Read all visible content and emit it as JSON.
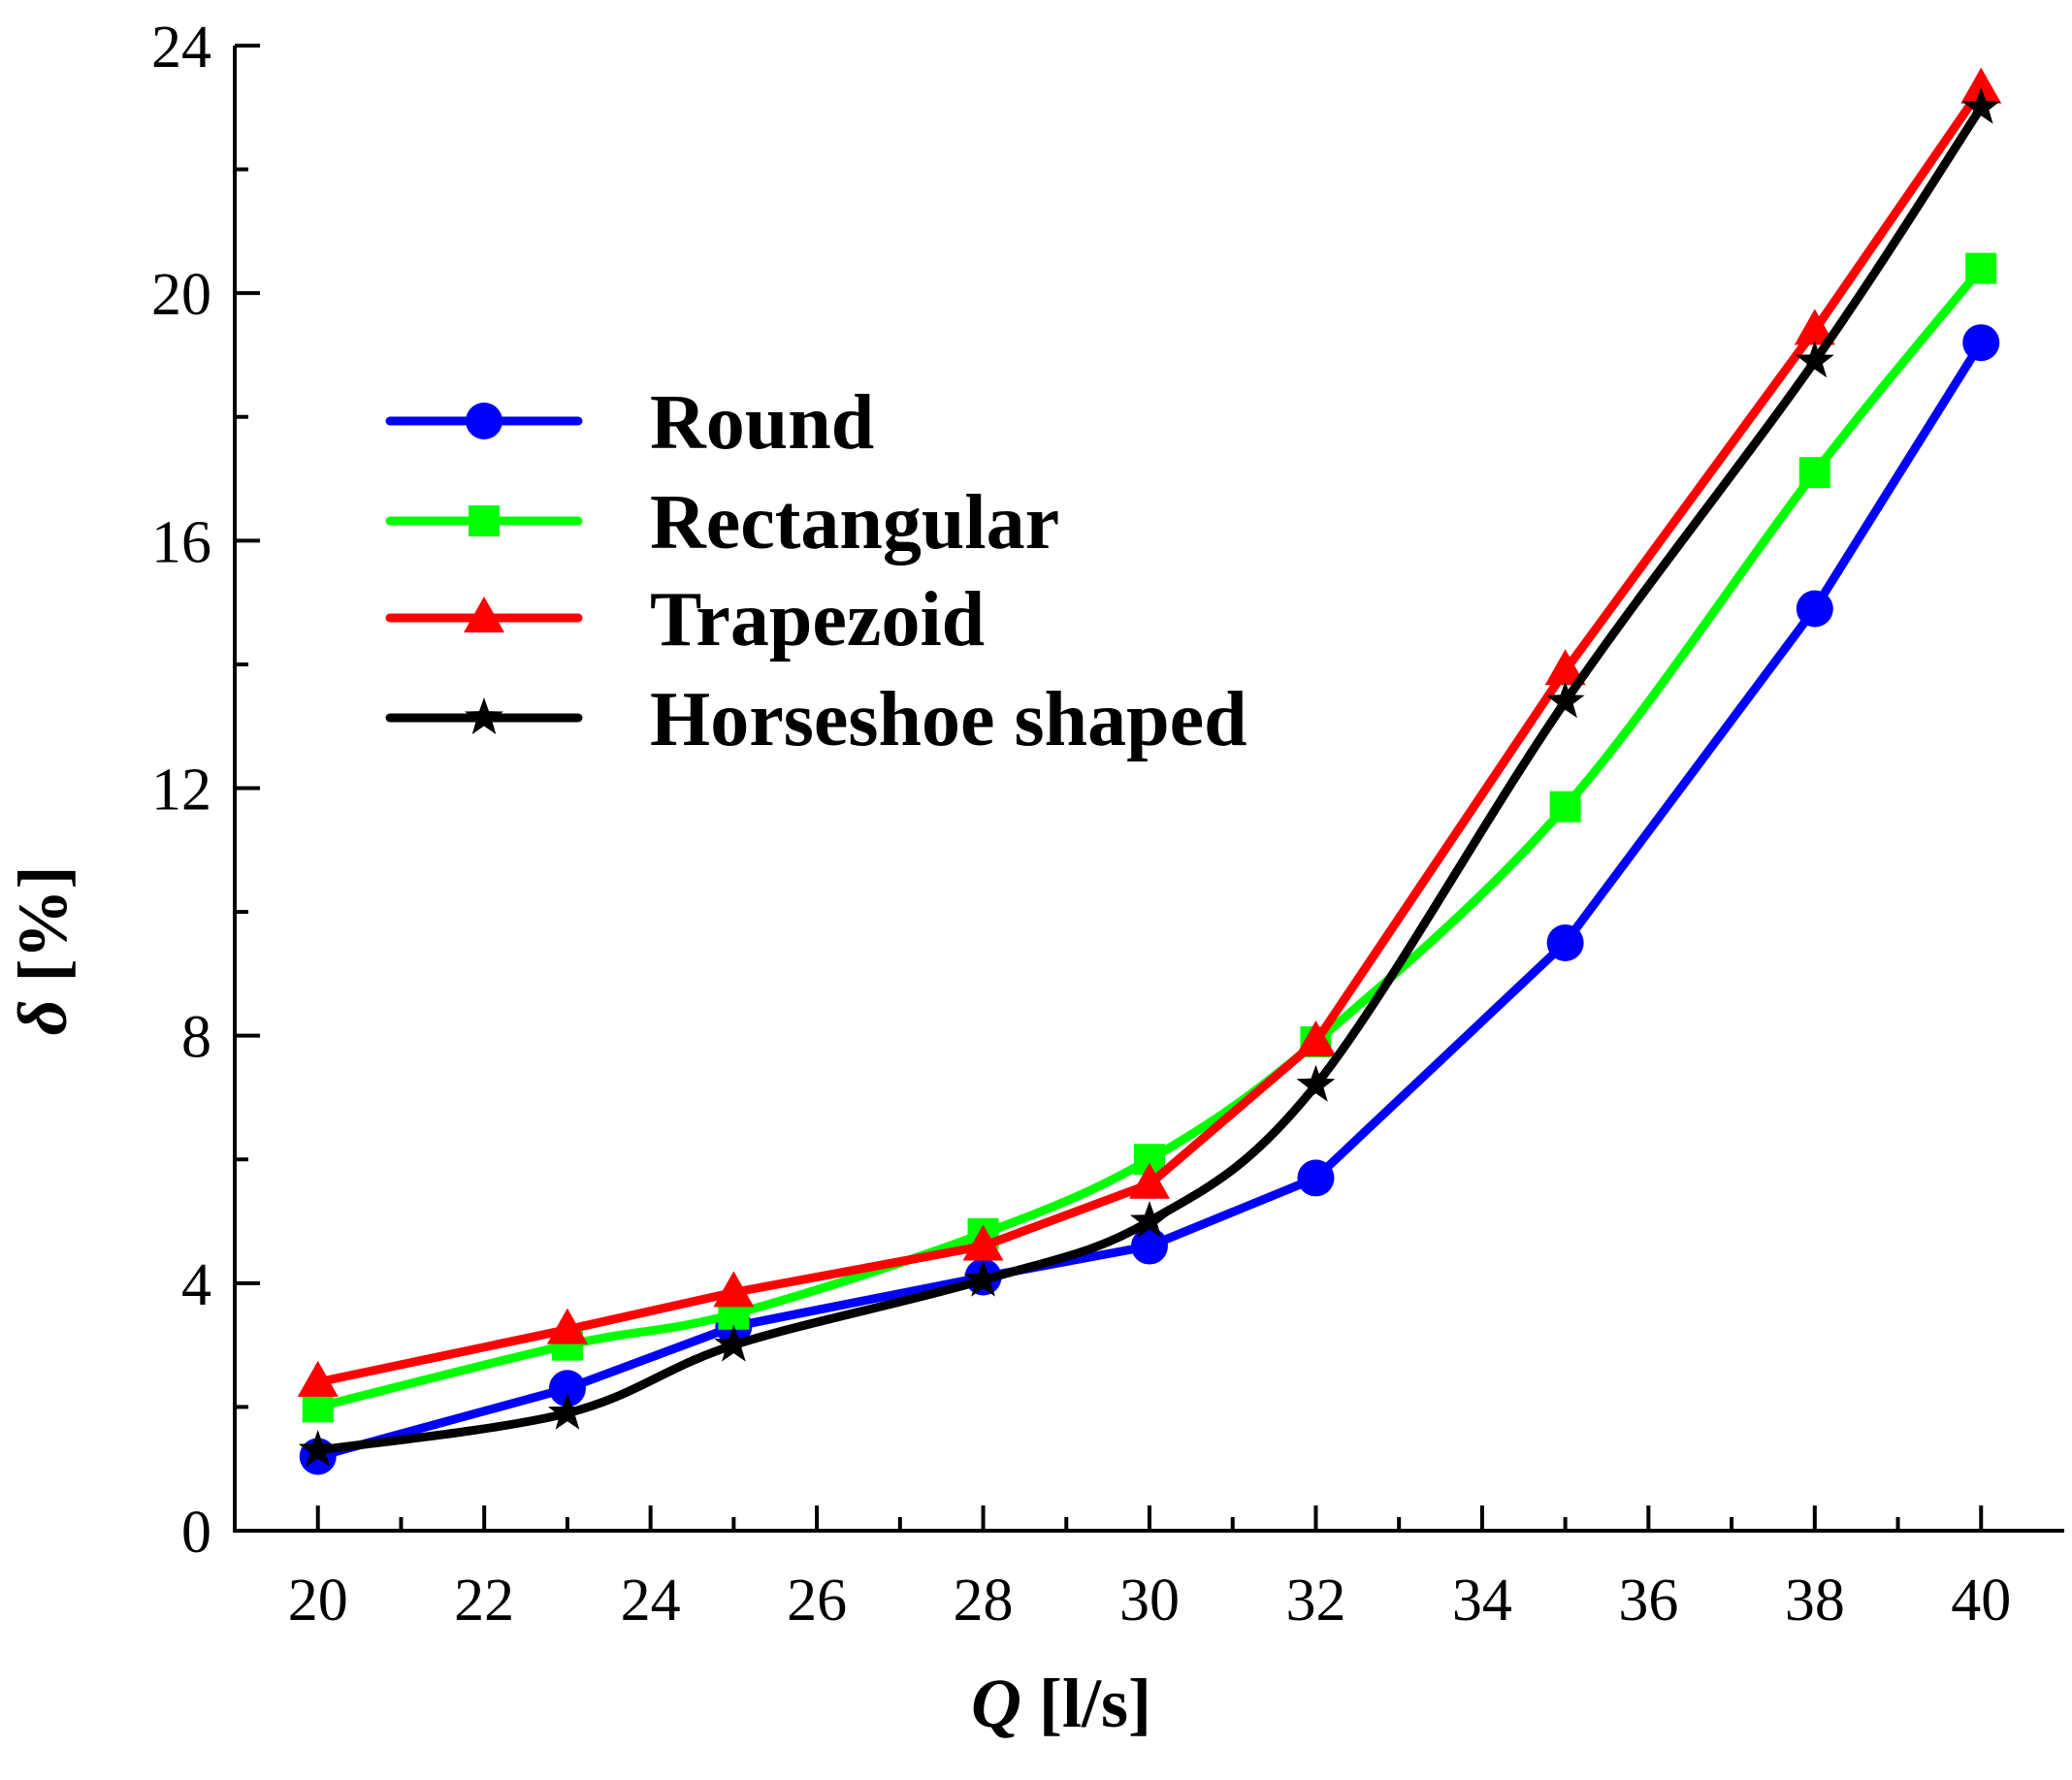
{
  "chart_data": {
    "type": "line",
    "title": "",
    "xlabel": "Q [l/s]",
    "ylabel": "δ [%]",
    "xlim": [
      19,
      41
    ],
    "ylim": [
      0,
      24
    ],
    "xticks": [
      20,
      22,
      24,
      26,
      28,
      30,
      32,
      34,
      36,
      38,
      40
    ],
    "yticks": [
      0,
      4,
      8,
      12,
      16,
      20,
      24
    ],
    "x": [
      20,
      23,
      25,
      28,
      30,
      32,
      35,
      38,
      40
    ],
    "legend_position": "upper-left",
    "series": [
      {
        "name": "Round",
        "color": "#0000ff",
        "marker": "circle",
        "smooth": false,
        "values": [
          1.2,
          2.3,
          3.3,
          4.1,
          4.6,
          5.7,
          9.5,
          14.9,
          19.2
        ]
      },
      {
        "name": "Rectangular",
        "color": "#00ff00",
        "marker": "square",
        "smooth": true,
        "values": [
          2.0,
          3.0,
          3.5,
          4.8,
          6.0,
          7.9,
          11.7,
          17.1,
          20.4
        ]
      },
      {
        "name": "Trapezoid",
        "color": "#ff0000",
        "marker": "triangle",
        "smooth": false,
        "values": [
          2.4,
          3.25,
          3.85,
          4.6,
          5.6,
          7.9,
          13.9,
          19.4,
          23.3
        ]
      },
      {
        "name": "Horseshoe shaped",
        "color": "#000000",
        "marker": "star",
        "smooth": true,
        "values": [
          1.3,
          1.9,
          3.0,
          4.05,
          5.0,
          7.2,
          13.4,
          18.9,
          23.0
        ]
      }
    ]
  }
}
